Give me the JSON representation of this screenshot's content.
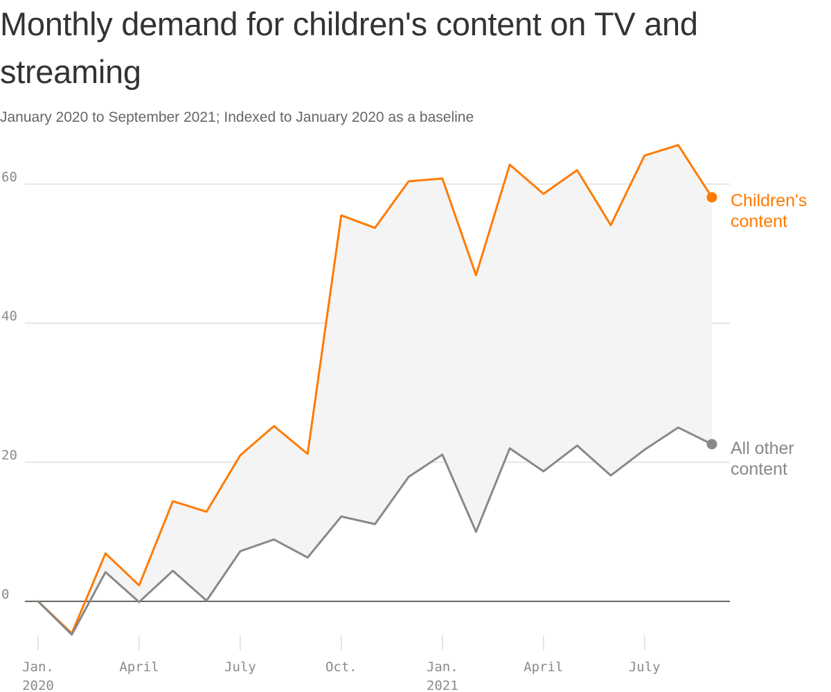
{
  "title": "Monthly demand for children's content on TV and streaming",
  "subtitle": "January 2020 to September 2021;  Indexed to January 2020 as a baseline",
  "chart_data": {
    "type": "line",
    "title": "Monthly demand for children's content on TV and streaming",
    "subtitle": "January 2020 to September 2021;  Indexed to January 2020 as a baseline",
    "x": [
      "2020-01",
      "2020-02",
      "2020-03",
      "2020-04",
      "2020-05",
      "2020-06",
      "2020-07",
      "2020-08",
      "2020-09",
      "2020-10",
      "2020-11",
      "2020-12",
      "2021-01",
      "2021-02",
      "2021-03",
      "2021-04",
      "2021-05",
      "2021-06",
      "2021-07",
      "2021-08",
      "2021-09"
    ],
    "x_ticks": [
      {
        "month": "2020-01",
        "lines": [
          "Jan.",
          "2020"
        ]
      },
      {
        "month": "2020-04",
        "lines": [
          "April"
        ]
      },
      {
        "month": "2020-07",
        "lines": [
          "July"
        ]
      },
      {
        "month": "2020-10",
        "lines": [
          "Oct."
        ]
      },
      {
        "month": "2021-01",
        "lines": [
          "Jan.",
          "2021"
        ]
      },
      {
        "month": "2021-04",
        "lines": [
          "April"
        ]
      },
      {
        "month": "2021-07",
        "lines": [
          "July"
        ]
      }
    ],
    "y_ticks": [
      0,
      20,
      40,
      60
    ],
    "y_tick_labels": [
      "0",
      "20",
      "40",
      "60"
    ],
    "ylim": [
      -6,
      66
    ],
    "grid": true,
    "shaded_between_series": true,
    "series": [
      {
        "name": "Children's content",
        "label_lines": [
          "Children's",
          "content"
        ],
        "color": "#ff7a00",
        "values": [
          0,
          -4.6,
          6.9,
          2.3,
          14.4,
          12.9,
          21.0,
          25.2,
          21.2,
          55.5,
          53.7,
          60.4,
          60.8,
          46.9,
          62.8,
          58.6,
          62.0,
          54.1,
          64.1,
          65.6,
          58.1
        ]
      },
      {
        "name": "All other content",
        "label_lines": [
          "All other",
          "content"
        ],
        "color": "#888888",
        "values": [
          0,
          -4.8,
          4.2,
          -0.1,
          4.4,
          0.1,
          7.2,
          8.9,
          6.3,
          12.2,
          11.1,
          17.9,
          21.1,
          10.0,
          22.0,
          18.7,
          22.4,
          18.1,
          21.8,
          25.0,
          22.6
        ]
      }
    ],
    "colors": {
      "text": "#333333",
      "subtitle": "#666666",
      "grid": "#dddddd",
      "baseline": "#333333",
      "tick_label": "#8a8a8a",
      "area_fill": "#f4f4f4"
    }
  }
}
